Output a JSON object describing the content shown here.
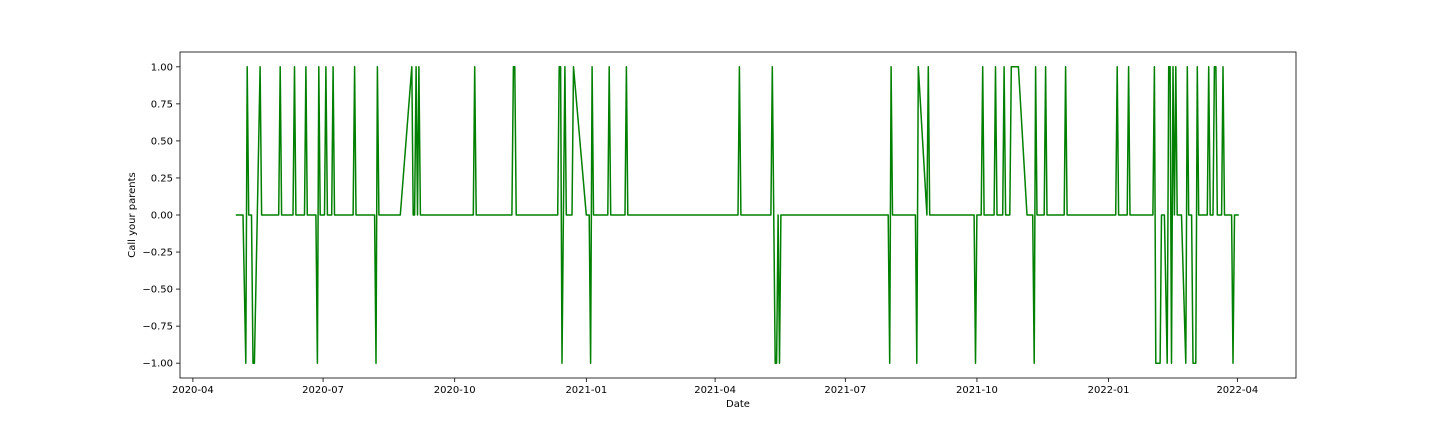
{
  "chart_data": {
    "type": "line",
    "title": "",
    "xlabel": "Date",
    "ylabel": "Call your parents",
    "x_ticks": [
      "2020-04",
      "2020-07",
      "2020-10",
      "2021-01",
      "2021-04",
      "2021-07",
      "2021-10",
      "2022-01",
      "2022-04"
    ],
    "y_ticks": [
      "1.00",
      "0.75",
      "0.50",
      "0.25",
      "0.00",
      "−0.25",
      "−0.50",
      "−0.75",
      "−1.00"
    ],
    "xlim": [
      "2020-03-23",
      "2022-05-12"
    ],
    "ylim": [
      -1.1,
      1.1
    ],
    "grid": false,
    "series": [
      {
        "color": "#008000",
        "points": [
          [
            "2020-05-01",
            0
          ],
          [
            "2020-05-06",
            0
          ],
          [
            "2020-05-08",
            -1
          ],
          [
            "2020-05-09",
            1
          ],
          [
            "2020-05-10",
            0
          ],
          [
            "2020-05-12",
            0
          ],
          [
            "2020-05-13",
            -1
          ],
          [
            "2020-05-14",
            -1
          ],
          [
            "2020-05-16",
            0
          ],
          [
            "2020-05-18",
            1
          ],
          [
            "2020-05-19",
            0
          ],
          [
            "2020-05-31",
            0
          ],
          [
            "2020-06-01",
            1
          ],
          [
            "2020-06-02",
            0
          ],
          [
            "2020-06-10",
            0
          ],
          [
            "2020-06-11",
            1
          ],
          [
            "2020-06-12",
            0
          ],
          [
            "2020-06-18",
            0
          ],
          [
            "2020-06-19",
            1
          ],
          [
            "2020-06-20",
            0
          ],
          [
            "2020-06-26",
            0
          ],
          [
            "2020-06-27",
            -1
          ],
          [
            "2020-06-28",
            1
          ],
          [
            "2020-06-29",
            0
          ],
          [
            "2020-07-02",
            0
          ],
          [
            "2020-07-03",
            1
          ],
          [
            "2020-07-04",
            0
          ],
          [
            "2020-07-07",
            0
          ],
          [
            "2020-07-08",
            1
          ],
          [
            "2020-07-09",
            0
          ],
          [
            "2020-07-22",
            0
          ],
          [
            "2020-07-23",
            1
          ],
          [
            "2020-07-24",
            0
          ],
          [
            "2020-08-06",
            0
          ],
          [
            "2020-08-07",
            -1
          ],
          [
            "2020-08-08",
            1
          ],
          [
            "2020-08-09",
            0
          ],
          [
            "2020-08-18",
            0
          ],
          [
            "2020-08-24",
            0
          ],
          [
            "2020-09-01",
            1
          ],
          [
            "2020-09-02",
            0
          ],
          [
            "2020-09-03",
            0
          ],
          [
            "2020-09-04",
            1
          ],
          [
            "2020-09-05",
            0
          ],
          [
            "2020-09-06",
            1
          ],
          [
            "2020-09-07",
            0
          ],
          [
            "2020-10-14",
            0
          ],
          [
            "2020-10-15",
            1
          ],
          [
            "2020-10-16",
            0
          ],
          [
            "2020-11-10",
            0
          ],
          [
            "2020-11-11",
            1
          ],
          [
            "2020-11-12",
            1
          ],
          [
            "2020-11-13",
            0
          ],
          [
            "2020-12-12",
            0
          ],
          [
            "2020-12-13",
            1
          ],
          [
            "2020-12-14",
            1
          ],
          [
            "2020-12-15",
            -1
          ],
          [
            "2020-12-16",
            0
          ],
          [
            "2020-12-17",
            1
          ],
          [
            "2020-12-18",
            0
          ],
          [
            "2020-12-22",
            0
          ],
          [
            "2020-12-23",
            1
          ],
          [
            "2021-01-01",
            0
          ],
          [
            "2021-01-03",
            0
          ],
          [
            "2021-01-04",
            -1
          ],
          [
            "2021-01-05",
            1
          ],
          [
            "2021-01-06",
            0
          ],
          [
            "2021-01-16",
            0
          ],
          [
            "2021-01-17",
            1
          ],
          [
            "2021-01-18",
            0
          ],
          [
            "2021-01-28",
            0
          ],
          [
            "2021-01-29",
            1
          ],
          [
            "2021-01-30",
            0
          ],
          [
            "2021-04-17",
            0
          ],
          [
            "2021-04-18",
            1
          ],
          [
            "2021-04-19",
            0
          ],
          [
            "2021-05-10",
            0
          ],
          [
            "2021-05-11",
            1
          ],
          [
            "2021-05-13",
            -1
          ],
          [
            "2021-05-14",
            -1
          ],
          [
            "2021-05-15",
            0
          ],
          [
            "2021-05-16",
            -1
          ],
          [
            "2021-05-17",
            0
          ],
          [
            "2021-07-31",
            0
          ],
          [
            "2021-08-01",
            -1
          ],
          [
            "2021-08-02",
            1
          ],
          [
            "2021-08-03",
            0
          ],
          [
            "2021-08-19",
            0
          ],
          [
            "2021-08-20",
            -1
          ],
          [
            "2021-08-21",
            1
          ],
          [
            "2021-08-27",
            0
          ],
          [
            "2021-08-28",
            1
          ],
          [
            "2021-08-29",
            0
          ],
          [
            "2021-09-29",
            0
          ],
          [
            "2021-09-30",
            -1
          ],
          [
            "2021-10-01",
            0
          ],
          [
            "2021-10-04",
            0
          ],
          [
            "2021-10-05",
            1
          ],
          [
            "2021-10-06",
            0
          ],
          [
            "2021-10-13",
            0
          ],
          [
            "2021-10-14",
            1
          ],
          [
            "2021-10-15",
            0
          ],
          [
            "2021-10-19",
            0
          ],
          [
            "2021-10-20",
            1
          ],
          [
            "2021-10-21",
            0
          ],
          [
            "2021-10-24",
            0
          ],
          [
            "2021-10-25",
            1
          ],
          [
            "2021-10-30",
            1
          ],
          [
            "2021-11-05",
            0
          ],
          [
            "2021-11-09",
            0
          ],
          [
            "2021-11-10",
            -1
          ],
          [
            "2021-11-11",
            1
          ],
          [
            "2021-11-12",
            0
          ],
          [
            "2021-11-17",
            0
          ],
          [
            "2021-11-18",
            1
          ],
          [
            "2021-11-19",
            0
          ],
          [
            "2021-12-01",
            0
          ],
          [
            "2021-12-02",
            1
          ],
          [
            "2021-12-03",
            0
          ],
          [
            "2022-01-06",
            0
          ],
          [
            "2022-01-07",
            1
          ],
          [
            "2022-01-08",
            0
          ],
          [
            "2022-01-14",
            0
          ],
          [
            "2022-01-15",
            1
          ],
          [
            "2022-01-16",
            0
          ],
          [
            "2022-02-01",
            0
          ],
          [
            "2022-02-02",
            1
          ],
          [
            "2022-02-03",
            -1
          ],
          [
            "2022-02-06",
            -1
          ],
          [
            "2022-02-07",
            0
          ],
          [
            "2022-02-09",
            0
          ],
          [
            "2022-02-11",
            -1
          ],
          [
            "2022-02-12",
            1
          ],
          [
            "2022-02-13",
            1
          ],
          [
            "2022-02-14",
            -1
          ],
          [
            "2022-02-15",
            1
          ],
          [
            "2022-02-16",
            0
          ],
          [
            "2022-02-17",
            1
          ],
          [
            "2022-02-18",
            0
          ],
          [
            "2022-02-21",
            0
          ],
          [
            "2022-02-24",
            -1
          ],
          [
            "2022-02-25",
            1
          ],
          [
            "2022-02-26",
            0
          ],
          [
            "2022-02-28",
            0
          ],
          [
            "2022-03-01",
            -1
          ],
          [
            "2022-03-03",
            -1
          ],
          [
            "2022-03-04",
            1
          ],
          [
            "2022-03-05",
            0
          ],
          [
            "2022-03-11",
            0
          ],
          [
            "2022-03-12",
            1
          ],
          [
            "2022-03-13",
            0
          ],
          [
            "2022-03-15",
            0
          ],
          [
            "2022-03-16",
            1
          ],
          [
            "2022-03-17",
            1
          ],
          [
            "2022-03-18",
            0
          ],
          [
            "2022-03-21",
            0
          ],
          [
            "2022-03-22",
            1
          ],
          [
            "2022-03-23",
            0
          ],
          [
            "2022-03-28",
            0
          ],
          [
            "2022-03-29",
            -1
          ],
          [
            "2022-03-30",
            0
          ],
          [
            "2022-04-02",
            0
          ]
        ]
      }
    ]
  }
}
